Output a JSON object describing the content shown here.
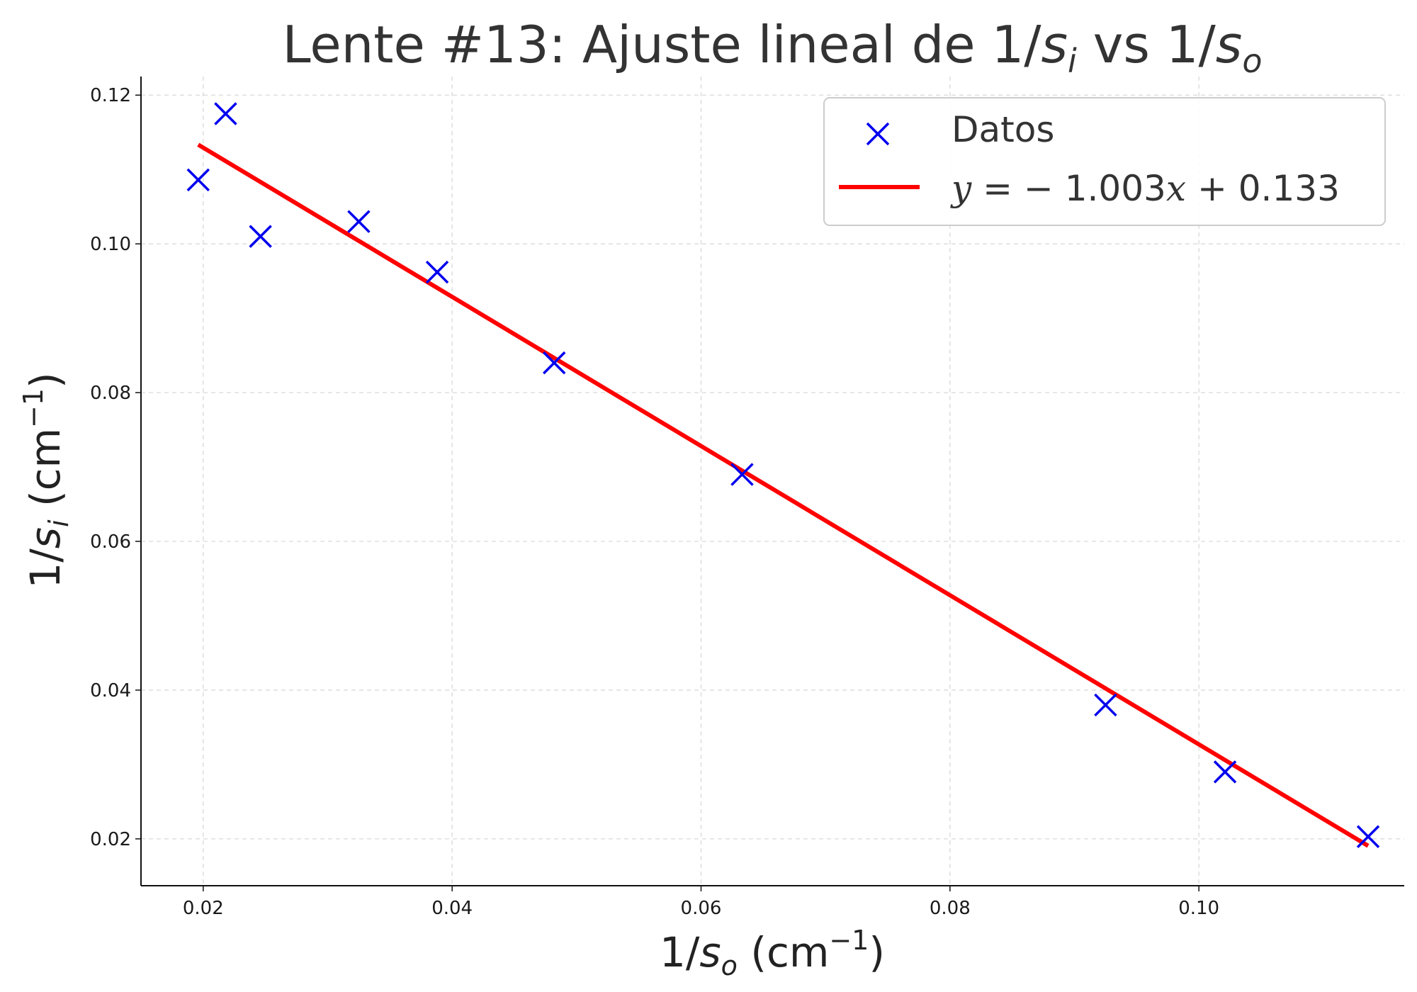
{
  "chart_data": {
    "type": "scatter",
    "title": {
      "prefix": "Lente #13: Ajuste lineal de 1/",
      "var1": "s",
      "sub1": "i",
      "mid": " vs 1/",
      "var2": "s",
      "sub2": "o"
    },
    "xlabel": {
      "prefix": "1/",
      "var": "s",
      "sub": "o",
      "unit_open": " (cm",
      "sup": "−1",
      "unit_close": ")"
    },
    "ylabel": {
      "prefix": "1/",
      "var": "s",
      "sub": "i",
      "unit_open": " (cm",
      "sup": "−1",
      "unit_close": ")"
    },
    "xlim": [
      0.015,
      0.1165
    ],
    "ylim": [
      0.0137,
      0.1225
    ],
    "xticks": [
      0.02,
      0.04,
      0.06,
      0.08,
      0.1
    ],
    "xtick_labels": [
      "0.02",
      "0.04",
      "0.06",
      "0.08",
      "0.10"
    ],
    "yticks": [
      0.02,
      0.04,
      0.06,
      0.08,
      0.1,
      0.12
    ],
    "ytick_labels": [
      "0.02",
      "0.04",
      "0.06",
      "0.08",
      "0.10",
      "0.12"
    ],
    "grid": true,
    "legend_position": "top-right",
    "series": [
      {
        "name": "Datos",
        "kind": "scatter",
        "marker": "x",
        "color": "#0000ee",
        "x": [
          0.0196,
          0.0218,
          0.0246,
          0.0325,
          0.0388,
          0.0482,
          0.0633,
          0.0925,
          0.1021,
          0.1136
        ],
        "y": [
          0.1086,
          0.1175,
          0.101,
          0.103,
          0.0962,
          0.084,
          0.069,
          0.038,
          0.029,
          0.0203
        ]
      },
      {
        "name": "y = −1.003x + 0.133",
        "kind": "line",
        "color": "#ff0000",
        "slope": -1.003,
        "intercept": 0.133,
        "x": [
          0.0196,
          0.1136
        ],
        "y": [
          0.11334,
          0.01906
        ]
      }
    ],
    "legend": {
      "entries": [
        {
          "series": 0,
          "label": "Datos"
        },
        {
          "series": 1,
          "label_parts": {
            "y": "y",
            "eq": " = − 1.003",
            "x": "x",
            "rest": " + 0.133"
          }
        }
      ]
    }
  }
}
